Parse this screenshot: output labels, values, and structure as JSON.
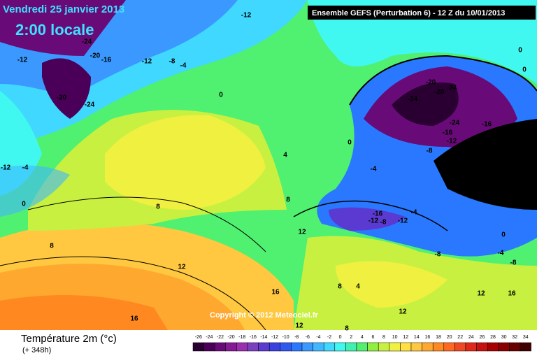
{
  "header": {
    "date": "Vendredi 25 janvier 2013",
    "time": "2:00 locale",
    "model": "Ensemble GEFS (Perturbation 6)  -  12 Z du 10/01/2013",
    "copyright": "Copyright © 2012 Meteociel.fr"
  },
  "footer": {
    "variable": "Température 2m (°c)",
    "lead": "(+ 348h)"
  },
  "colorbar": {
    "ticks": [
      -26,
      -24,
      -22,
      -20,
      -18,
      -16,
      -14,
      -12,
      -10,
      -8,
      -6,
      -4,
      -2,
      0,
      2,
      4,
      6,
      8,
      10,
      12,
      14,
      16,
      18,
      20,
      22,
      24,
      26,
      28,
      30,
      32,
      34
    ],
    "colors": [
      "#2a0033",
      "#4a0058",
      "#680a78",
      "#861a96",
      "#9a30ae",
      "#7a40c0",
      "#5a3ad0",
      "#3a40e0",
      "#3058f0",
      "#2a78ff",
      "#3a98ff",
      "#40b8ff",
      "#40d8ff",
      "#40f8f0",
      "#40f0b0",
      "#50f070",
      "#90f040",
      "#c8f040",
      "#f0f040",
      "#ffe040",
      "#ffc840",
      "#ffa830",
      "#ff8820",
      "#ff6820",
      "#f04820",
      "#e02818",
      "#c81010",
      "#a80000",
      "#880000",
      "#680000",
      "#400000"
    ]
  },
  "contour_labels": [
    -12,
    -24,
    -20,
    -16,
    -12,
    -12,
    -8,
    -4,
    -20,
    -24,
    0,
    -12,
    -4,
    0,
    8,
    8,
    12,
    16,
    16,
    4,
    0,
    -4,
    8,
    12,
    -20,
    -20,
    -24,
    -24,
    -24,
    -16,
    -12,
    -16,
    -20,
    -8,
    0,
    0,
    -16,
    -12,
    -8,
    -12,
    -4,
    0,
    -4,
    -8,
    -8,
    8,
    4,
    12,
    12,
    16,
    12,
    8
  ]
}
